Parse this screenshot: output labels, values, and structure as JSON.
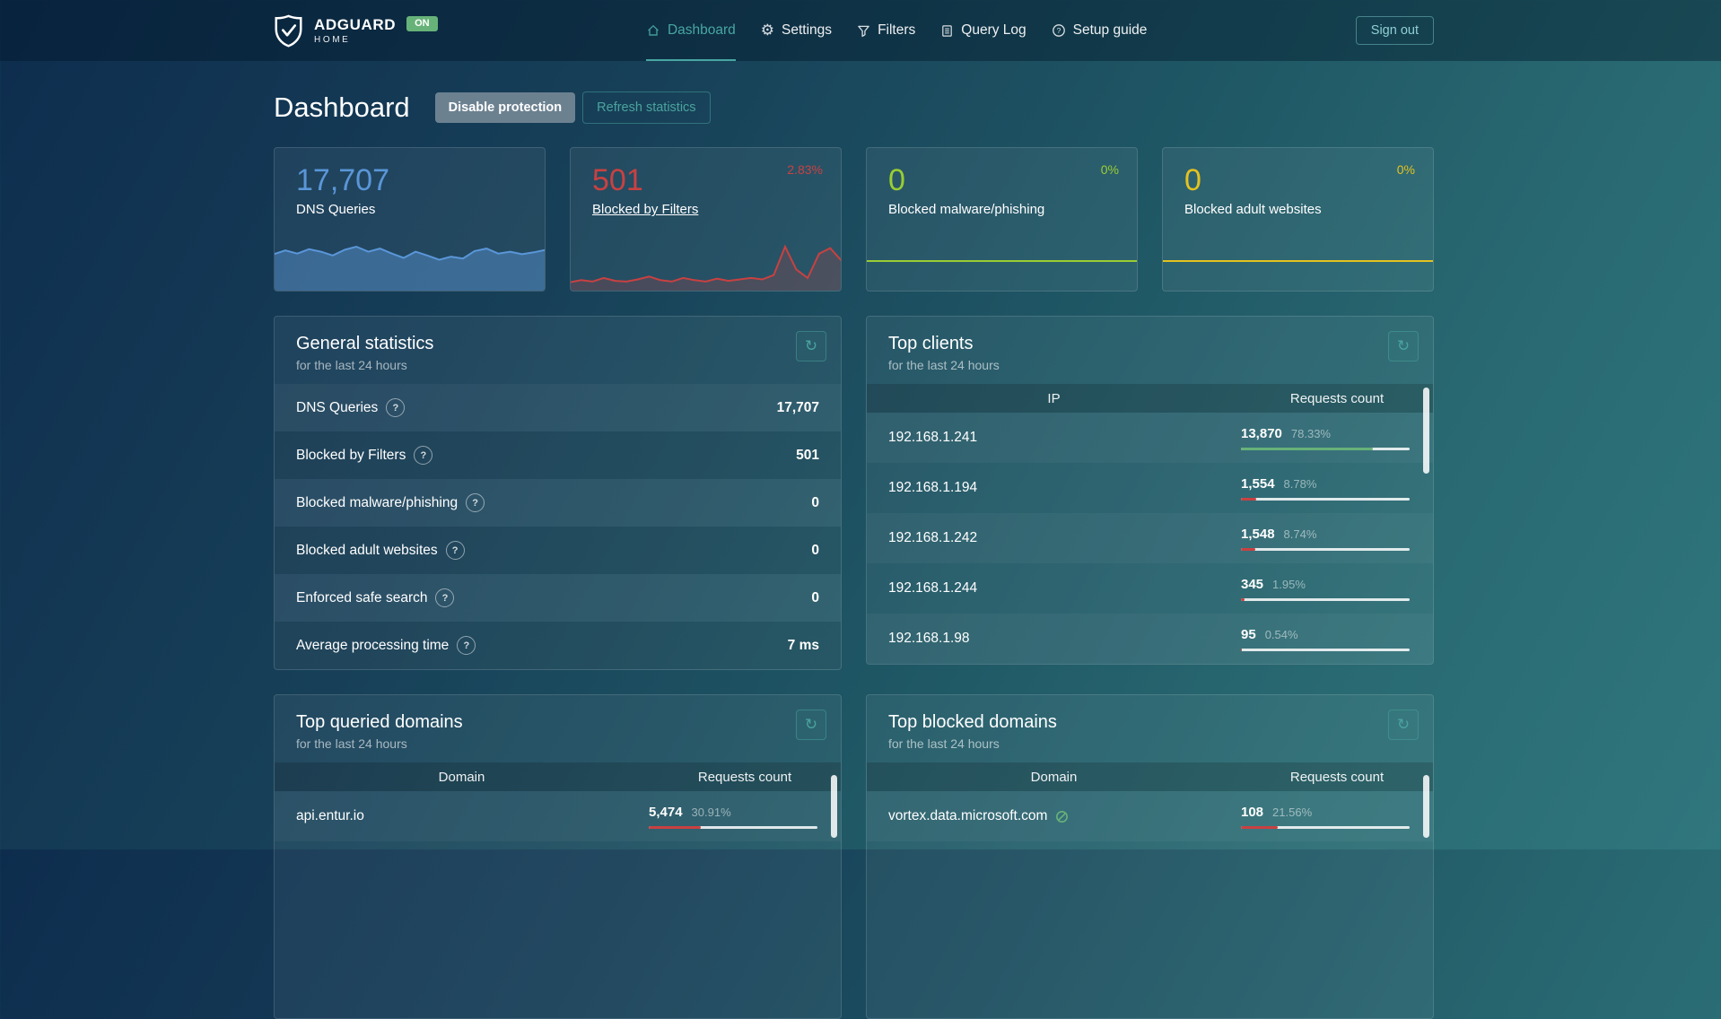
{
  "colors": {
    "accent": "#4aa39e",
    "green": "#67b279",
    "red": "#c94141",
    "blue": "#5a96d8",
    "lime": "#9acd32",
    "yellow": "#e4c220"
  },
  "icons": {
    "refresh": "↻",
    "help": "?"
  },
  "navbar": {
    "brand_title": "ADGUARD",
    "brand_sub": "HOME",
    "status_badge": "ON",
    "items": [
      {
        "label": "Dashboard",
        "active": true
      },
      {
        "label": "Settings",
        "active": false
      },
      {
        "label": "Filters",
        "active": false
      },
      {
        "label": "Query Log",
        "active": false
      },
      {
        "label": "Setup guide",
        "active": false
      }
    ],
    "sign_out_label": "Sign out"
  },
  "header": {
    "title": "Dashboard",
    "disable_button": "Disable protection",
    "refresh_button": "Refresh statistics"
  },
  "stat_cards": [
    {
      "value": "17,707",
      "label": "DNS Queries",
      "percent": "",
      "color": "#5a96d8",
      "fill": true,
      "fill_opacity": 0.45,
      "spark": [
        54,
        60,
        55,
        62,
        58,
        52,
        61,
        66,
        58,
        63,
        55,
        48,
        58,
        52,
        45,
        50,
        47,
        59,
        63,
        55,
        58,
        54,
        57,
        61
      ]
    },
    {
      "value": "501",
      "label": "Blocked by Filters",
      "percent": "2.83%",
      "color": "#c94141",
      "fill": true,
      "fill_opacity": 0.22,
      "spark": [
        8,
        11,
        9,
        14,
        10,
        9,
        12,
        16,
        11,
        9,
        14,
        11,
        9,
        13,
        10,
        12,
        14,
        12,
        18,
        58,
        26,
        14,
        48,
        56,
        38
      ]
    },
    {
      "value": "0",
      "label": "Blocked malware/phishing",
      "percent": "0%",
      "color": "#9acd32",
      "fill": false,
      "fill_opacity": 0,
      "spark": [
        0,
        0
      ]
    },
    {
      "value": "0",
      "label": "Blocked adult websites",
      "percent": "0%",
      "color": "#e4c220",
      "fill": false,
      "fill_opacity": 0,
      "spark": [
        0,
        0
      ]
    }
  ],
  "general_stats": {
    "title": "General statistics",
    "subtitle": "for the last 24 hours",
    "rows": [
      {
        "label": "DNS Queries",
        "value": "17,707"
      },
      {
        "label": "Blocked by Filters",
        "value": "501"
      },
      {
        "label": "Blocked malware/phishing",
        "value": "0"
      },
      {
        "label": "Blocked adult websites",
        "value": "0"
      },
      {
        "label": "Enforced safe search",
        "value": "0"
      },
      {
        "label": "Average processing time",
        "value": "7 ms"
      }
    ]
  },
  "top_clients": {
    "title": "Top clients",
    "subtitle": "for the last 24 hours",
    "col_ip": "IP",
    "col_count": "Requests count",
    "rows": [
      {
        "ip": "192.168.1.241",
        "count": "13,870",
        "percent": "78.33%",
        "bar": 78.33,
        "bar_color": "#67b279"
      },
      {
        "ip": "192.168.1.194",
        "count": "1,554",
        "percent": "8.78%",
        "bar": 8.78,
        "bar_color": "#c94141"
      },
      {
        "ip": "192.168.1.242",
        "count": "1,548",
        "percent": "8.74%",
        "bar": 8.74,
        "bar_color": "#c94141"
      },
      {
        "ip": "192.168.1.244",
        "count": "345",
        "percent": "1.95%",
        "bar": 1.95,
        "bar_color": "#c94141"
      },
      {
        "ip": "192.168.1.98",
        "count": "95",
        "percent": "0.54%",
        "bar": 0.54,
        "bar_color": "#c94141"
      }
    ]
  },
  "top_queried": {
    "title": "Top queried domains",
    "subtitle": "for the last 24 hours",
    "col_domain": "Domain",
    "col_count": "Requests count",
    "rows": [
      {
        "domain": "api.entur.io",
        "count": "5,474",
        "percent": "30.91%",
        "bar": 30.91,
        "bar_color": "#c94141"
      }
    ]
  },
  "top_blocked": {
    "title": "Top blocked domains",
    "subtitle": "for the last 24 hours",
    "col_domain": "Domain",
    "col_count": "Requests count",
    "rows": [
      {
        "domain": "vortex.data.microsoft.com",
        "count": "108",
        "percent": "21.56%",
        "bar": 21.56,
        "bar_color": "#c94141",
        "icon": "unblock-icon"
      }
    ]
  }
}
